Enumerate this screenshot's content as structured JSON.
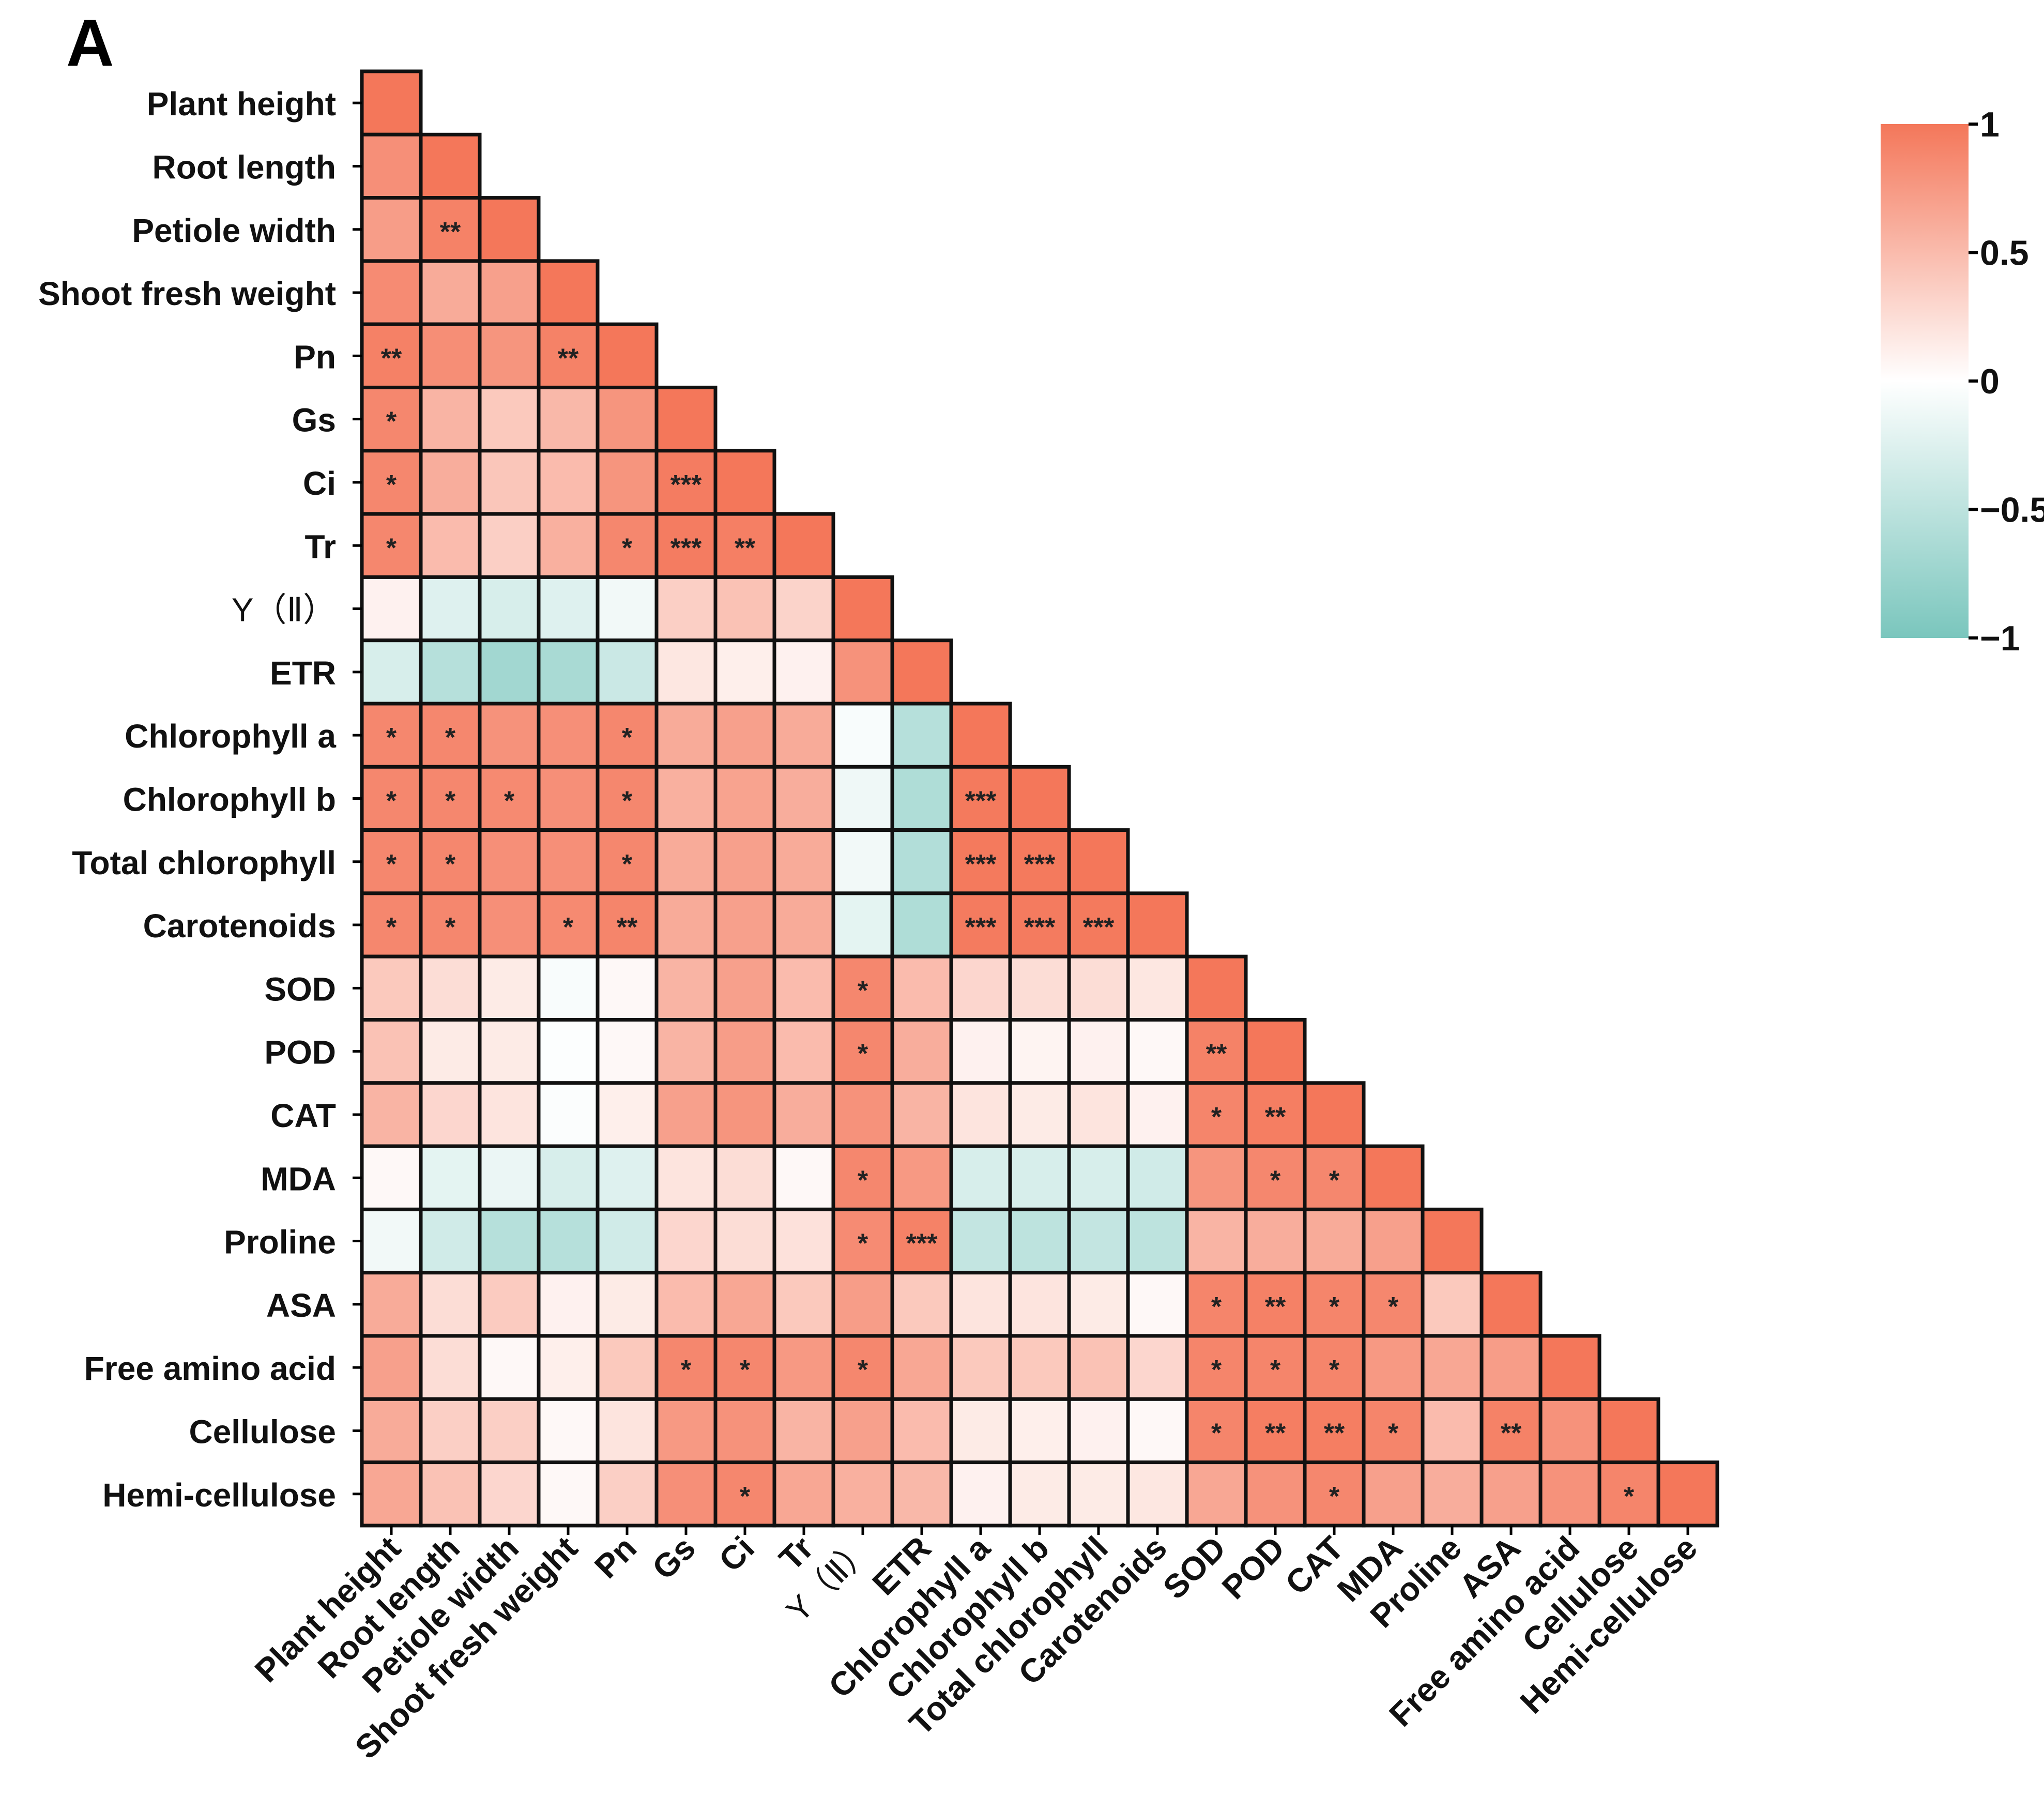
{
  "panel_label": "A",
  "colors": {
    "positive": "#F4775A",
    "zero": "#FFFFFF",
    "negative": "#7AC6BD",
    "cell_border": "#111111"
  },
  "chart_data": {
    "type": "heatmap",
    "title": "",
    "variables": [
      "Plant height",
      "Root length",
      "Petiole width",
      "Shoot fresh weight",
      "Pn",
      "Gs",
      "Ci",
      "Tr",
      "Y（Ⅱ）",
      "ETR",
      "Chlorophyll a",
      "Chlorophyll b",
      "Total chlorophyll",
      "Carotenoids",
      "SOD",
      "POD",
      "CAT",
      "MDA",
      "Proline",
      "ASA",
      "Free amino acid",
      "Cellulose",
      "Hemi-cellulose"
    ],
    "matrix": [
      [
        1.0
      ],
      [
        0.82,
        1.0
      ],
      [
        0.72,
        0.92,
        1.0
      ],
      [
        0.85,
        0.62,
        0.7,
        1.0
      ],
      [
        0.93,
        0.83,
        0.78,
        0.92,
        1.0
      ],
      [
        0.88,
        0.55,
        0.4,
        0.52,
        0.78,
        1.0
      ],
      [
        0.88,
        0.6,
        0.42,
        0.5,
        0.78,
        0.96,
        1.0
      ],
      [
        0.88,
        0.5,
        0.35,
        0.58,
        0.88,
        0.96,
        0.94,
        1.0
      ],
      [
        0.1,
        -0.25,
        -0.3,
        -0.25,
        -0.1,
        0.35,
        0.45,
        0.32,
        1.0
      ],
      [
        -0.3,
        -0.55,
        -0.7,
        -0.65,
        -0.4,
        0.18,
        0.12,
        0.1,
        0.8,
        1.0
      ],
      [
        0.88,
        0.88,
        0.8,
        0.82,
        0.88,
        0.62,
        0.7,
        0.62,
        -0.05,
        -0.55,
        1.0
      ],
      [
        0.88,
        0.88,
        0.86,
        0.82,
        0.88,
        0.58,
        0.68,
        0.6,
        -0.12,
        -0.6,
        0.98,
        1.0
      ],
      [
        0.88,
        0.88,
        0.82,
        0.82,
        0.88,
        0.62,
        0.7,
        0.62,
        -0.1,
        -0.58,
        0.98,
        0.98,
        1.0
      ],
      [
        0.88,
        0.88,
        0.82,
        0.86,
        0.9,
        0.62,
        0.7,
        0.62,
        -0.2,
        -0.6,
        0.97,
        0.97,
        0.98,
        1.0
      ],
      [
        0.4,
        0.25,
        0.15,
        -0.05,
        0.05,
        0.55,
        0.7,
        0.5,
        0.88,
        0.5,
        0.3,
        0.25,
        0.25,
        0.18,
        1.0
      ],
      [
        0.45,
        0.15,
        0.15,
        -0.02,
        0.05,
        0.55,
        0.72,
        0.5,
        0.88,
        0.6,
        0.1,
        0.08,
        0.1,
        0.05,
        0.92,
        1.0
      ],
      [
        0.55,
        0.3,
        0.2,
        -0.03,
        0.12,
        0.7,
        0.78,
        0.6,
        0.8,
        0.55,
        0.2,
        0.15,
        0.2,
        0.1,
        0.9,
        0.95,
        1.0
      ],
      [
        0.05,
        -0.2,
        -0.15,
        -0.3,
        -0.25,
        0.2,
        0.25,
        0.05,
        0.88,
        0.75,
        -0.3,
        -0.3,
        -0.3,
        -0.35,
        0.78,
        0.88,
        0.88,
        1.0
      ],
      [
        -0.1,
        -0.35,
        -0.55,
        -0.55,
        -0.35,
        0.3,
        0.25,
        0.22,
        0.85,
        0.92,
        -0.45,
        -0.5,
        -0.45,
        -0.5,
        0.55,
        0.6,
        0.62,
        0.7,
        1.0
      ],
      [
        0.62,
        0.25,
        0.38,
        0.1,
        0.15,
        0.5,
        0.65,
        0.4,
        0.72,
        0.4,
        0.2,
        0.2,
        0.15,
        0.05,
        0.9,
        0.93,
        0.9,
        0.88,
        0.4,
        1.0
      ],
      [
        0.7,
        0.25,
        0.05,
        0.12,
        0.4,
        0.88,
        0.88,
        0.75,
        0.88,
        0.65,
        0.4,
        0.4,
        0.45,
        0.3,
        0.9,
        0.9,
        0.9,
        0.75,
        0.65,
        0.72,
        1.0
      ],
      [
        0.62,
        0.35,
        0.35,
        0.05,
        0.2,
        0.75,
        0.8,
        0.55,
        0.7,
        0.5,
        0.15,
        0.12,
        0.1,
        0.05,
        0.9,
        0.95,
        0.95,
        0.9,
        0.5,
        0.92,
        0.8,
        1.0
      ],
      [
        0.65,
        0.45,
        0.3,
        0.05,
        0.35,
        0.82,
        0.88,
        0.65,
        0.58,
        0.52,
        0.1,
        0.15,
        0.15,
        0.18,
        0.65,
        0.8,
        0.88,
        0.7,
        0.6,
        0.7,
        0.8,
        0.9,
        1.0
      ]
    ],
    "significance": [
      [
        ""
      ],
      [
        "",
        ""
      ],
      [
        "",
        "**",
        ""
      ],
      [
        "",
        "",
        "",
        ""
      ],
      [
        "**",
        "",
        "",
        "**",
        ""
      ],
      [
        "*",
        "",
        "",
        "",
        "",
        ""
      ],
      [
        "*",
        "",
        "",
        "",
        "",
        "***",
        ""
      ],
      [
        "*",
        "",
        "",
        "",
        "*",
        "***",
        "**",
        ""
      ],
      [
        "",
        "",
        "",
        "",
        "",
        "",
        "",
        "",
        ""
      ],
      [
        "",
        "",
        "",
        "",
        "",
        "",
        "",
        "",
        "",
        ""
      ],
      [
        "*",
        "*",
        "",
        "",
        "*",
        "",
        "",
        "",
        "",
        "",
        ""
      ],
      [
        "*",
        "*",
        "*",
        "",
        "*",
        "",
        "",
        "",
        "",
        "",
        "***",
        ""
      ],
      [
        "*",
        "*",
        "",
        "",
        "*",
        "",
        "",
        "",
        "",
        "",
        "***",
        "***",
        ""
      ],
      [
        "*",
        "*",
        "",
        "*",
        "**",
        "",
        "",
        "",
        "",
        "",
        "***",
        "***",
        "***",
        ""
      ],
      [
        "",
        "",
        "",
        "",
        "",
        "",
        "",
        "",
        "*",
        "",
        "",
        "",
        "",
        "",
        ""
      ],
      [
        "",
        "",
        "",
        "",
        "",
        "",
        "",
        "",
        "*",
        "",
        "",
        "",
        "",
        "",
        "**",
        ""
      ],
      [
        "",
        "",
        "",
        "",
        "",
        "",
        "",
        "",
        "",
        "",
        "",
        "",
        "",
        "",
        "*",
        "**",
        ""
      ],
      [
        "",
        "",
        "",
        "",
        "",
        "",
        "",
        "",
        "*",
        "",
        "",
        "",
        "",
        "",
        "",
        "*",
        "*",
        ""
      ],
      [
        "",
        "",
        "",
        "",
        "",
        "",
        "",
        "",
        "*",
        "***",
        "",
        "",
        "",
        "",
        "",
        "",
        "",
        "",
        ""
      ],
      [
        "",
        "",
        "",
        "",
        "",
        "",
        "",
        "",
        "",
        "",
        "",
        "",
        "",
        "",
        "*",
        "**",
        "*",
        "*",
        "",
        ""
      ],
      [
        "",
        "",
        "",
        "",
        "",
        "*",
        "*",
        "",
        "*",
        "",
        "",
        "",
        "",
        "",
        "*",
        "*",
        "*",
        "",
        "",
        "",
        ""
      ],
      [
        "",
        "",
        "",
        "",
        "",
        "",
        "",
        "",
        "",
        "",
        "",
        "",
        "",
        "",
        "*",
        "**",
        "**",
        "*",
        "",
        "**",
        "",
        ""
      ],
      [
        "",
        "",
        "",
        "",
        "",
        "",
        "*",
        "",
        "",
        "",
        "",
        "",
        "",
        "",
        "",
        "",
        "*",
        "",
        "",
        "",
        "",
        "*",
        ""
      ]
    ],
    "legend": {
      "ticks": [
        "1",
        "0.5",
        "0",
        "−0.5",
        "−1"
      ],
      "tick_values": [
        1,
        0.5,
        0,
        -0.5,
        -1
      ],
      "range": [
        -1,
        1
      ]
    }
  }
}
